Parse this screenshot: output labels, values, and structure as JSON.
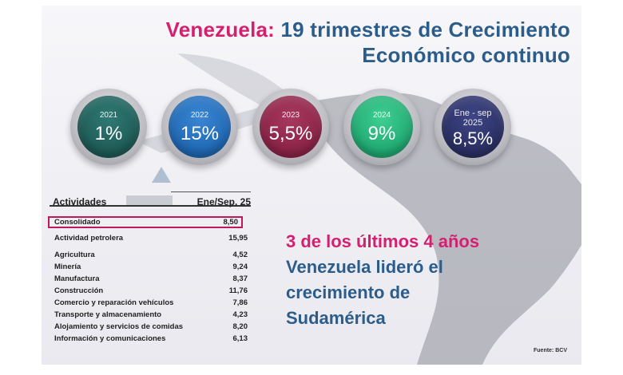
{
  "title": {
    "accent": "Venezuela:",
    "line1_rest": " 19 trimestres de Crecimiento",
    "line2": "Económico continuo"
  },
  "growth": [
    {
      "year": "2021",
      "value": "1%",
      "color": "#1e5a55"
    },
    {
      "year": "2022",
      "value": "15%",
      "color": "#1f67b2"
    },
    {
      "year": "2023",
      "value": "5,5%",
      "color": "#8a2346"
    },
    {
      "year": "2024",
      "value": "9%",
      "color": "#1fa870"
    },
    {
      "year": "Ene - sep 2025",
      "year_a": "Ene - sep",
      "year_b": "2025",
      "value": "8,5%",
      "color": "#2a2f63"
    }
  ],
  "table": {
    "col1": "Actividades",
    "col2": "Ene/Sep. 25",
    "consolidado": {
      "label": "Consolidado",
      "value": "8,50"
    },
    "rows": [
      {
        "label": "Actividad petrolera",
        "value": "15,95"
      },
      {
        "label": "Agricultura",
        "value": "4,52"
      },
      {
        "label": "Minería",
        "value": "9,24"
      },
      {
        "label": "Manufactura",
        "value": "8,37"
      },
      {
        "label": "Construcción",
        "value": "11,76"
      },
      {
        "label": "Comercio y reparación vehículos",
        "value": "7,86"
      },
      {
        "label": "Transporte y almacenamiento",
        "value": "4,23"
      },
      {
        "label": "Alojamiento y servicios de comidas",
        "value": "8,20"
      },
      {
        "label": "Información y comunicaciones",
        "value": "6,13"
      }
    ]
  },
  "highlight": {
    "line1": "3 de los últimos 4 años",
    "line2": "Venezuela lideró el",
    "line3": "crecimiento de",
    "line4": "Sudamérica"
  },
  "source": "Fuente: BCV",
  "colors": {
    "accent": "#d4206f",
    "blue": "#2c5d8a"
  }
}
